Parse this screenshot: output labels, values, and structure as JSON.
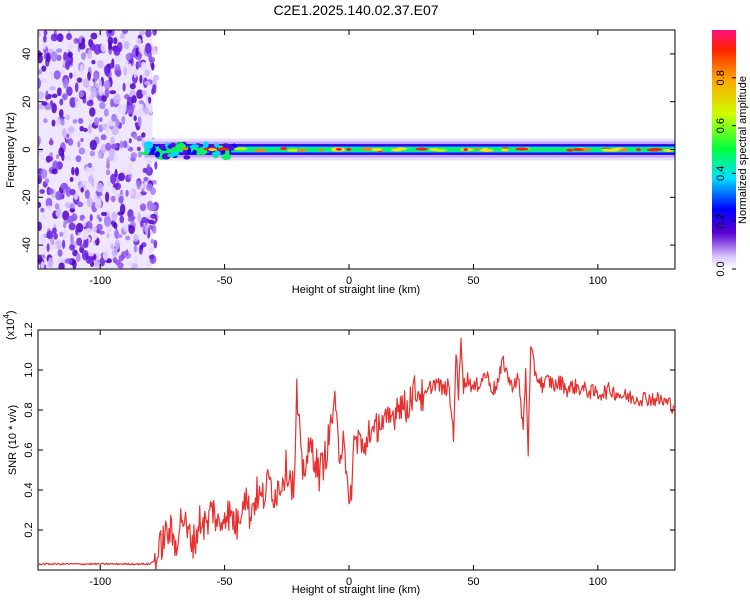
{
  "title": "C2E1.2025.140.02.37.E07",
  "chart_data": [
    {
      "type": "heatmap",
      "xlabel": "Height of straight line (km)",
      "ylabel": "Frequency (Hz)",
      "xlim": [
        -125,
        131
      ],
      "ylim": [
        -50,
        50
      ],
      "x_ticks": [
        -100,
        -50,
        0,
        50,
        100
      ],
      "y_ticks": [
        -40,
        -20,
        0,
        20,
        40
      ],
      "noise_region_x": [
        -125,
        -79
      ],
      "signal_band_center_hz": 0,
      "colorbar": {
        "label": "Normalized spectral amplitude",
        "range": [
          0.0,
          1.0
        ],
        "ticks": [
          "0.0",
          "0.2",
          "0.4",
          "0.6",
          "0.8"
        ]
      }
    },
    {
      "type": "line",
      "xlabel": "Height of straight line (km)",
      "ylabel": "SNR (10 * v/v)",
      "scale_label": "(x10",
      "scale_exp": "4",
      "xlim": [
        -125,
        131
      ],
      "ylim": [
        0.0,
        1.2
      ],
      "x_ticks": [
        -100,
        -50,
        0,
        50,
        100
      ],
      "y_ticks": [
        "0.2",
        "0.4",
        "0.6",
        "0.8",
        "1.0",
        "1.2"
      ],
      "color": "#e8312f",
      "series": [
        {
          "x": [
            -125,
            -100,
            -80,
            -77,
            -75,
            -72,
            -70,
            -67,
            -65,
            -62,
            -60,
            -57,
            -55,
            -52,
            -50,
            -47,
            -45,
            -42,
            -40,
            -37,
            -35,
            -32,
            -30,
            -28,
            -25,
            -22,
            -21,
            -19,
            -17,
            -15,
            -12,
            -10,
            -8,
            -6,
            -4,
            -2,
            0,
            2,
            4,
            6,
            8,
            10,
            12,
            15,
            18,
            20,
            23,
            25,
            28,
            30,
            33,
            35,
            38,
            40,
            42,
            43,
            44,
            45,
            46,
            48,
            50,
            53,
            55,
            58,
            60,
            62,
            65,
            68,
            70,
            71,
            72,
            73,
            75,
            78,
            80,
            83,
            85,
            88,
            90,
            95,
            100,
            105,
            110,
            115,
            120,
            125,
            131
          ],
          "y": [
            0.03,
            0.03,
            0.03,
            0.06,
            0.15,
            0.2,
            0.12,
            0.28,
            0.18,
            0.14,
            0.25,
            0.22,
            0.32,
            0.2,
            0.3,
            0.26,
            0.22,
            0.4,
            0.28,
            0.38,
            0.35,
            0.45,
            0.38,
            0.42,
            0.52,
            0.4,
            0.88,
            0.5,
            0.55,
            0.62,
            0.48,
            0.55,
            0.66,
            0.85,
            0.58,
            0.7,
            0.25,
            0.62,
            0.68,
            0.56,
            0.72,
            0.66,
            0.75,
            0.72,
            0.78,
            0.85,
            0.8,
            0.88,
            0.9,
            0.85,
            0.92,
            0.94,
            0.9,
            0.92,
            0.68,
            1.1,
            0.85,
            1.18,
            0.92,
            0.96,
            0.9,
            0.95,
            0.98,
            0.9,
            0.94,
            1.05,
            0.92,
            0.96,
            0.7,
            1.0,
            0.6,
            1.1,
            0.98,
            0.92,
            0.95,
            0.92,
            0.94,
            0.9,
            0.92,
            0.9,
            0.88,
            0.9,
            0.87,
            0.86,
            0.86,
            0.85,
            0.82
          ]
        }
      ]
    }
  ]
}
